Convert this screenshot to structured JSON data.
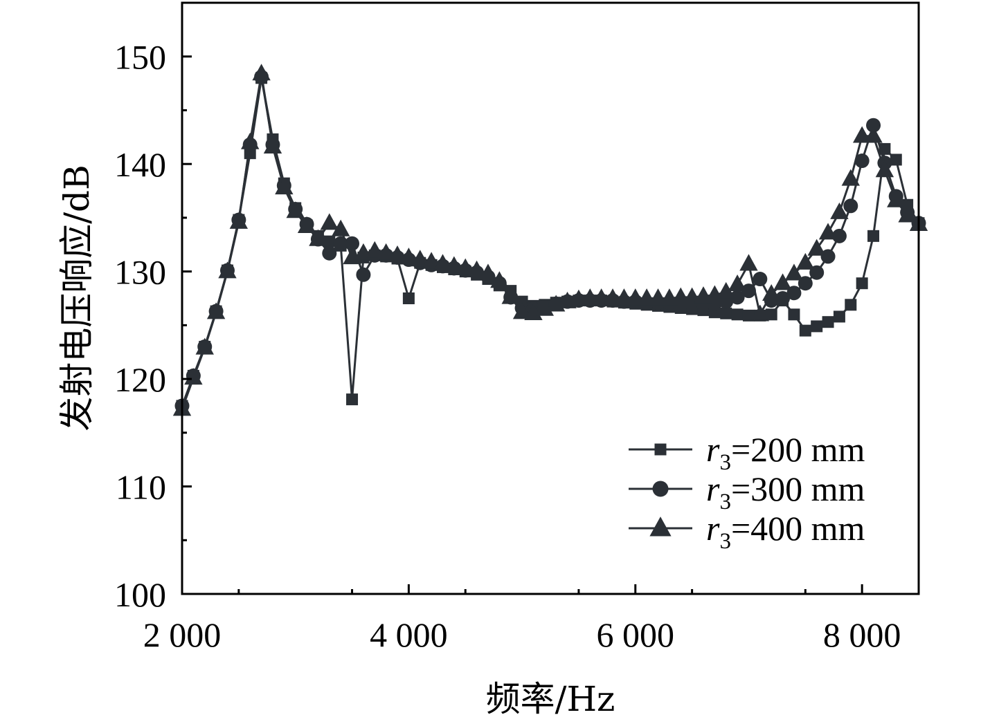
{
  "chart_data": {
    "type": "line",
    "xlabel": "频率/Hz",
    "ylabel": "发射电压响应/dB",
    "xlim": [
      2000,
      8500
    ],
    "ylim": [
      100,
      155
    ],
    "x_ticks": [
      2000,
      4000,
      6000,
      8000
    ],
    "x_tick_labels": [
      "2 000",
      "4 000",
      "6 000",
      "8 000"
    ],
    "y_ticks": [
      100,
      110,
      120,
      130,
      140,
      150
    ],
    "y_tick_labels": [
      "100",
      "110",
      "120",
      "130",
      "140",
      "150"
    ],
    "grid": false,
    "legend_position": "bottom-right",
    "colors": {
      "series": "#2b3036"
    },
    "series": [
      {
        "name": "r3=200 mm",
        "label_var": "r",
        "label_sub": "3",
        "label_rest": "=200 mm",
        "marker": "square",
        "x": [
          2000,
          2100,
          2200,
          2300,
          2400,
          2500,
          2600,
          2700,
          2800,
          2900,
          3000,
          3100,
          3200,
          3300,
          3400,
          3500,
          3600,
          3700,
          3800,
          3900,
          4000,
          4100,
          4200,
          4300,
          4400,
          4500,
          4600,
          4700,
          4800,
          4900,
          5000,
          5100,
          5200,
          5300,
          5400,
          5500,
          5600,
          5700,
          5800,
          5900,
          6000,
          6100,
          6200,
          6300,
          6400,
          6500,
          6600,
          6700,
          6800,
          6900,
          7000,
          7100,
          7200,
          7300,
          7400,
          7500,
          7600,
          7700,
          7800,
          7900,
          8000,
          8100,
          8200,
          8300,
          8400,
          8500
        ],
        "y": [
          117.5,
          120.3,
          123.0,
          126.3,
          130.1,
          134.8,
          141.0,
          148.0,
          142.3,
          138.2,
          135.9,
          134.3,
          133.3,
          132.8,
          132.4,
          118.1,
          131.3,
          131.5,
          131.4,
          131.2,
          127.5,
          130.8,
          130.6,
          130.4,
          130.2,
          130.0,
          129.7,
          129.3,
          128.7,
          128.2,
          127.2,
          126.8,
          126.9,
          127.1,
          127.2,
          127.3,
          127.3,
          127.3,
          127.2,
          127.1,
          127.0,
          126.9,
          126.8,
          126.7,
          126.6,
          126.5,
          126.4,
          126.2,
          126.1,
          126.0,
          125.9,
          125.9,
          126.0,
          127.3,
          126.0,
          124.5,
          124.9,
          125.3,
          125.8,
          126.9,
          128.9,
          133.3,
          141.4,
          140.4,
          136.2,
          134.5
        ]
      },
      {
        "name": "r3=300 mm",
        "label_var": "r",
        "label_sub": "3",
        "label_rest": "=300 mm",
        "marker": "circle",
        "x": [
          2000,
          2100,
          2200,
          2300,
          2400,
          2500,
          2600,
          2700,
          2800,
          2900,
          3000,
          3100,
          3200,
          3300,
          3400,
          3500,
          3600,
          3700,
          3800,
          3900,
          4000,
          4100,
          4200,
          4300,
          4400,
          4500,
          4600,
          4700,
          4800,
          4900,
          5000,
          5100,
          5200,
          5300,
          5400,
          5500,
          5600,
          5700,
          5800,
          5900,
          6000,
          6100,
          6200,
          6300,
          6400,
          6500,
          6600,
          6700,
          6800,
          6900,
          7000,
          7100,
          7200,
          7300,
          7400,
          7500,
          7600,
          7700,
          7800,
          7900,
          8000,
          8100,
          8200,
          8300,
          8400,
          8500
        ],
        "y": [
          117.5,
          120.3,
          123.0,
          126.3,
          130.1,
          134.8,
          141.8,
          148.1,
          141.8,
          138.0,
          135.8,
          134.4,
          133.0,
          131.7,
          132.6,
          132.6,
          129.7,
          131.5,
          131.5,
          131.3,
          131.1,
          130.8,
          130.6,
          130.5,
          130.3,
          130.1,
          129.9,
          129.5,
          128.9,
          127.6,
          126.6,
          126.5,
          126.7,
          127.0,
          127.2,
          127.3,
          127.3,
          127.3,
          127.3,
          127.2,
          127.2,
          127.1,
          127.1,
          127.1,
          127.0,
          127.0,
          127.0,
          127.0,
          127.2,
          127.6,
          128.2,
          129.3,
          127.3,
          127.5,
          128.0,
          128.9,
          129.9,
          131.4,
          133.3,
          136.1,
          140.3,
          143.6,
          140.1,
          137.0,
          135.5,
          134.5
        ]
      },
      {
        "name": "r3=400 mm",
        "label_var": "r",
        "label_sub": "3",
        "label_rest": "=400 mm",
        "marker": "triangle",
        "x": [
          2000,
          2100,
          2200,
          2300,
          2400,
          2500,
          2600,
          2700,
          2800,
          2900,
          3000,
          3100,
          3200,
          3300,
          3400,
          3500,
          3600,
          3700,
          3800,
          3900,
          4000,
          4100,
          4200,
          4300,
          4400,
          4500,
          4600,
          4700,
          4800,
          4900,
          5000,
          5100,
          5200,
          5300,
          5400,
          5500,
          5600,
          5700,
          5800,
          5900,
          6000,
          6100,
          6200,
          6300,
          6400,
          6500,
          6600,
          6700,
          6800,
          6900,
          7000,
          7100,
          7200,
          7300,
          7400,
          7500,
          7600,
          7700,
          7800,
          7900,
          8000,
          8100,
          8200,
          8300,
          8400,
          8500
        ],
        "y": [
          117.2,
          120.1,
          122.9,
          126.2,
          130.0,
          134.6,
          142.0,
          148.4,
          141.6,
          137.8,
          135.6,
          134.2,
          133.0,
          134.5,
          133.9,
          131.3,
          131.7,
          131.9,
          131.7,
          131.5,
          131.3,
          131.1,
          130.9,
          130.7,
          130.5,
          130.3,
          130.1,
          129.8,
          129.1,
          127.6,
          126.2,
          126.1,
          126.5,
          126.9,
          127.2,
          127.4,
          127.5,
          127.5,
          127.5,
          127.5,
          127.5,
          127.5,
          127.5,
          127.5,
          127.6,
          127.6,
          127.7,
          127.8,
          128.1,
          128.8,
          130.7,
          126.0,
          127.9,
          128.9,
          129.8,
          130.8,
          132.1,
          133.6,
          135.5,
          138.6,
          142.6,
          142.6,
          139.4,
          136.6,
          135.2,
          134.4
        ]
      }
    ]
  }
}
